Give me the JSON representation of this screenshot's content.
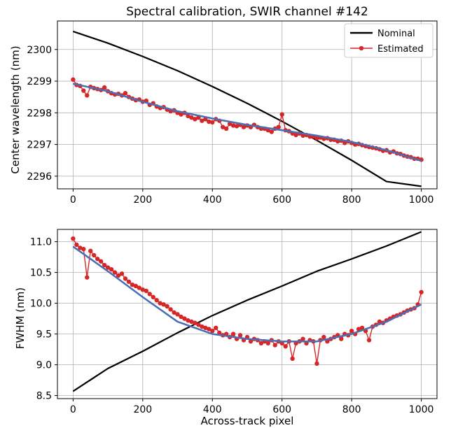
{
  "chart_data": [
    {
      "type": "line",
      "title": "Spectral calibration, SWIR channel #142",
      "xlabel": "",
      "ylabel": "Center wavelength (nm)",
      "xlim": [
        -45,
        1045
      ],
      "ylim": [
        2295.6,
        2300.9
      ],
      "xticks": [
        0,
        200,
        400,
        600,
        800,
        1000
      ],
      "yticks": [
        2296,
        2297,
        2298,
        2299,
        2300
      ],
      "grid": true,
      "legend": "top-right",
      "series": [
        {
          "name": "Nominal",
          "color": "#000000",
          "style": "line",
          "x": [
            0,
            100,
            200,
            300,
            400,
            500,
            600,
            700,
            800,
            900,
            1000
          ],
          "y": [
            2300.57,
            2300.2,
            2299.78,
            2299.33,
            2298.83,
            2298.3,
            2297.73,
            2297.13,
            2296.5,
            2295.83,
            2295.68
          ]
        },
        {
          "name": "Estimated",
          "color": "#d62728",
          "style": "line-marker",
          "x": [
            0,
            10,
            20,
            30,
            40,
            50,
            60,
            70,
            80,
            90,
            100,
            110,
            120,
            130,
            140,
            150,
            160,
            170,
            180,
            190,
            200,
            210,
            220,
            230,
            240,
            250,
            260,
            270,
            280,
            290,
            300,
            310,
            320,
            330,
            340,
            350,
            360,
            370,
            380,
            390,
            400,
            410,
            420,
            430,
            440,
            450,
            460,
            470,
            480,
            490,
            500,
            510,
            520,
            530,
            540,
            550,
            560,
            570,
            580,
            590,
            600,
            610,
            620,
            630,
            640,
            650,
            660,
            670,
            680,
            690,
            700,
            710,
            720,
            730,
            740,
            750,
            760,
            770,
            780,
            790,
            800,
            810,
            820,
            830,
            840,
            850,
            860,
            870,
            880,
            890,
            900,
            910,
            920,
            930,
            940,
            950,
            960,
            970,
            980,
            990,
            1000
          ],
          "y": [
            2299.05,
            2298.88,
            2298.85,
            2298.7,
            2298.55,
            2298.82,
            2298.78,
            2298.75,
            2298.72,
            2298.8,
            2298.68,
            2298.62,
            2298.58,
            2298.6,
            2298.55,
            2298.62,
            2298.5,
            2298.45,
            2298.4,
            2298.42,
            2298.35,
            2298.38,
            2298.25,
            2298.3,
            2298.2,
            2298.15,
            2298.18,
            2298.1,
            2298.05,
            2298.08,
            2298.0,
            2297.95,
            2298.0,
            2297.9,
            2297.85,
            2297.8,
            2297.85,
            2297.75,
            2297.8,
            2297.72,
            2297.7,
            2297.8,
            2297.75,
            2297.55,
            2297.5,
            2297.65,
            2297.6,
            2297.58,
            2297.62,
            2297.55,
            2297.6,
            2297.55,
            2297.62,
            2297.55,
            2297.5,
            2297.5,
            2297.45,
            2297.4,
            2297.5,
            2297.55,
            2297.95,
            2297.45,
            2297.42,
            2297.35,
            2297.3,
            2297.35,
            2297.28,
            2297.3,
            2297.25,
            2297.25,
            2297.2,
            2297.22,
            2297.18,
            2297.2,
            2297.15,
            2297.15,
            2297.1,
            2297.12,
            2297.05,
            2297.1,
            2297.05,
            2297.0,
            2297.02,
            2296.98,
            2296.95,
            2296.92,
            2296.9,
            2296.88,
            2296.85,
            2296.8,
            2296.82,
            2296.75,
            2296.78,
            2296.72,
            2296.7,
            2296.65,
            2296.62,
            2296.6,
            2296.55,
            2296.55,
            2296.52
          ]
        },
        {
          "name": "",
          "color": "#4a6fb5",
          "style": "line",
          "x": [
            0,
            100,
            200,
            300,
            400,
            500,
            600,
            700,
            800,
            900,
            1000
          ],
          "y": [
            2298.92,
            2298.68,
            2298.35,
            2298.05,
            2297.82,
            2297.62,
            2297.45,
            2297.28,
            2297.08,
            2296.82,
            2296.48
          ]
        }
      ]
    },
    {
      "type": "line",
      "title": "",
      "xlabel": "Across-track pixel",
      "ylabel": "FWHM (nm)",
      "xlim": [
        -45,
        1045
      ],
      "ylim": [
        8.45,
        11.2
      ],
      "xticks": [
        0,
        200,
        400,
        600,
        800,
        1000
      ],
      "yticks": [
        8.5,
        9.0,
        9.5,
        10.0,
        10.5,
        11.0
      ],
      "grid": true,
      "series": [
        {
          "name": "Nominal",
          "color": "#000000",
          "style": "line",
          "x": [
            0,
            100,
            200,
            300,
            400,
            500,
            600,
            700,
            800,
            900,
            1000
          ],
          "y": [
            8.57,
            8.94,
            9.22,
            9.52,
            9.8,
            10.05,
            10.28,
            10.52,
            10.72,
            10.93,
            11.16
          ]
        },
        {
          "name": "Estimated",
          "color": "#d62728",
          "style": "line-marker",
          "x": [
            0,
            10,
            20,
            30,
            40,
            50,
            60,
            70,
            80,
            90,
            100,
            110,
            120,
            130,
            140,
            150,
            160,
            170,
            180,
            190,
            200,
            210,
            220,
            230,
            240,
            250,
            260,
            270,
            280,
            290,
            300,
            310,
            320,
            330,
            340,
            350,
            360,
            370,
            380,
            390,
            400,
            410,
            420,
            430,
            440,
            450,
            460,
            470,
            480,
            490,
            500,
            510,
            520,
            530,
            540,
            550,
            560,
            570,
            580,
            590,
            600,
            610,
            620,
            630,
            640,
            650,
            660,
            670,
            680,
            690,
            700,
            710,
            720,
            730,
            740,
            750,
            760,
            770,
            780,
            790,
            800,
            810,
            820,
            830,
            840,
            850,
            860,
            870,
            880,
            890,
            900,
            910,
            920,
            930,
            940,
            950,
            960,
            970,
            980,
            990,
            1000
          ],
          "y": [
            11.05,
            10.95,
            10.9,
            10.88,
            10.42,
            10.85,
            10.78,
            10.72,
            10.68,
            10.62,
            10.58,
            10.55,
            10.5,
            10.45,
            10.48,
            10.4,
            10.35,
            10.3,
            10.28,
            10.25,
            10.22,
            10.2,
            10.15,
            10.1,
            10.05,
            10.0,
            9.98,
            9.95,
            9.9,
            9.85,
            9.82,
            9.78,
            9.75,
            9.72,
            9.7,
            9.68,
            9.65,
            9.62,
            9.6,
            9.58,
            9.55,
            9.6,
            9.52,
            9.48,
            9.5,
            9.45,
            9.5,
            9.42,
            9.48,
            9.4,
            9.45,
            9.38,
            9.42,
            9.4,
            9.35,
            9.38,
            9.35,
            9.4,
            9.32,
            9.38,
            9.35,
            9.3,
            9.38,
            9.1,
            9.35,
            9.38,
            9.42,
            9.35,
            9.4,
            9.38,
            9.02,
            9.4,
            9.45,
            9.38,
            9.42,
            9.45,
            9.48,
            9.42,
            9.5,
            9.48,
            9.55,
            9.5,
            9.58,
            9.6,
            9.55,
            9.4,
            9.62,
            9.65,
            9.7,
            9.68,
            9.72,
            9.75,
            9.78,
            9.8,
            9.82,
            9.85,
            9.88,
            9.9,
            9.92,
            9.98,
            10.18
          ]
        },
        {
          "name": "",
          "color": "#4a6fb5",
          "style": "line",
          "x": [
            0,
            100,
            200,
            300,
            400,
            500,
            600,
            700,
            800,
            900,
            1000
          ],
          "y": [
            10.92,
            10.52,
            10.1,
            9.7,
            9.5,
            9.42,
            9.38,
            9.38,
            9.5,
            9.7,
            9.98
          ]
        }
      ]
    }
  ]
}
